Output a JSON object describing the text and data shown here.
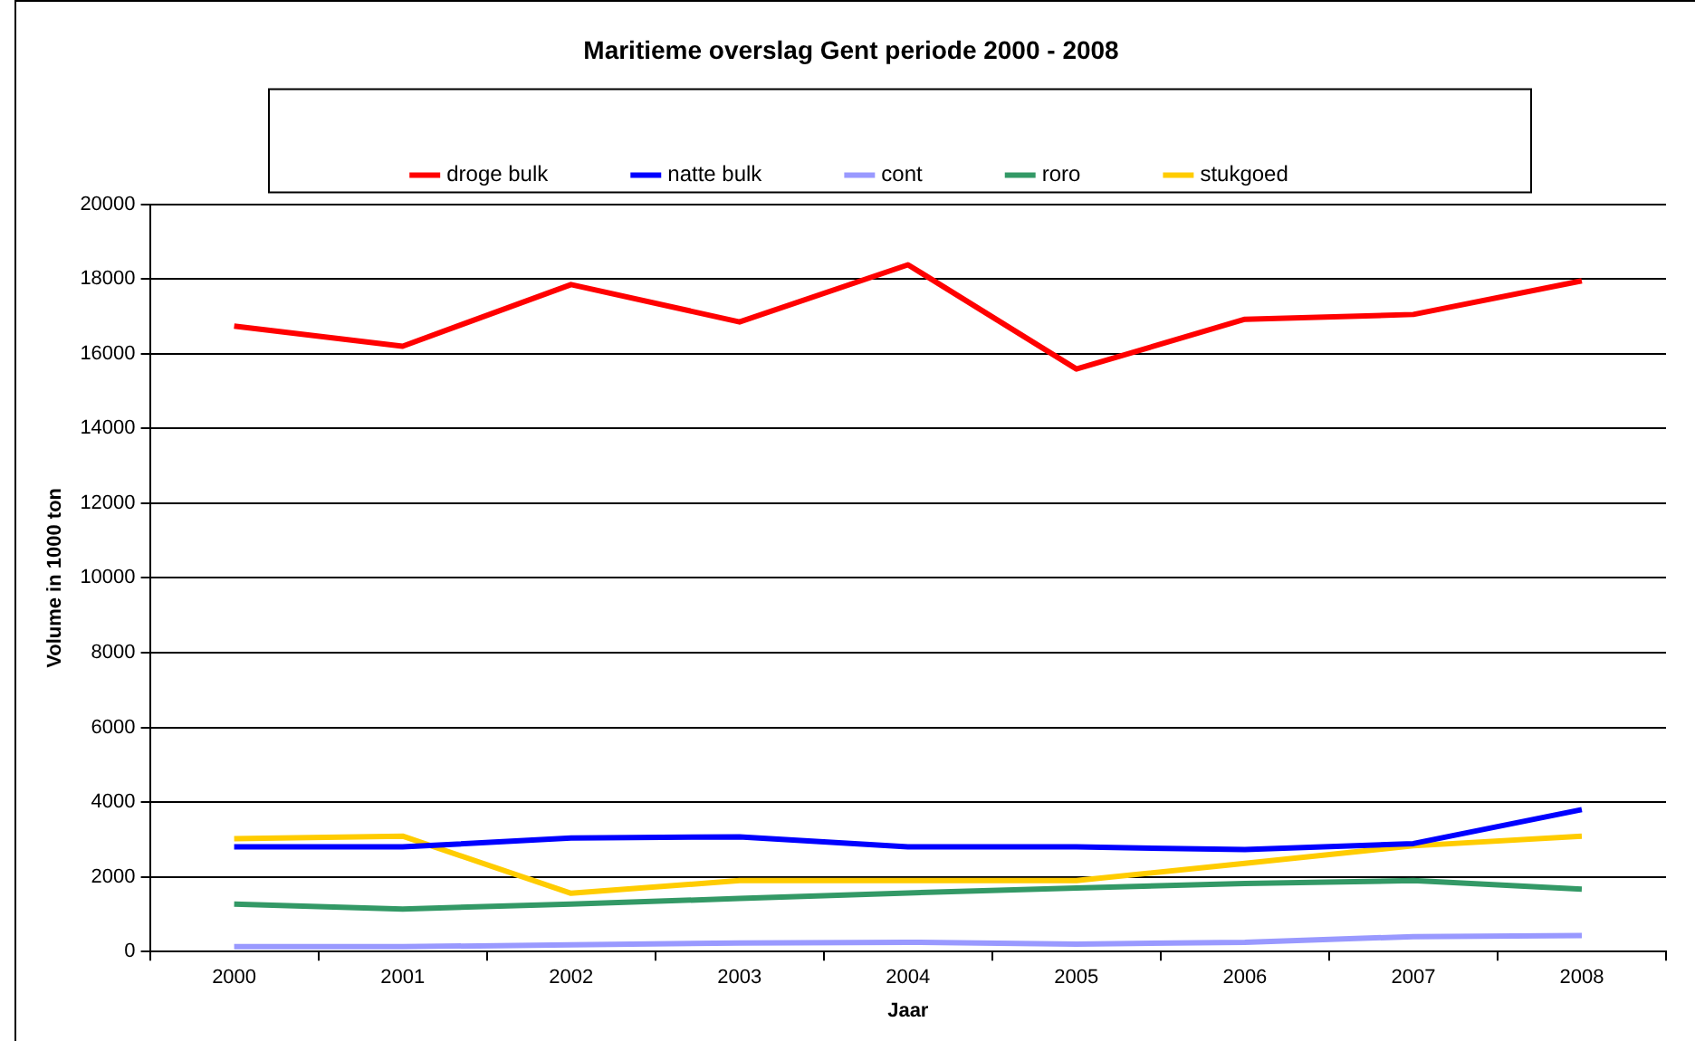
{
  "chart_data": {
    "type": "line",
    "title": "Maritieme overslag Gent periode 2000 - 2008",
    "xlabel": "Jaar",
    "ylabel": "Volume in 1000 ton",
    "categories": [
      "2000",
      "2001",
      "2002",
      "2003",
      "2004",
      "2005",
      "2006",
      "2007",
      "2008"
    ],
    "series": [
      {
        "name": "droge bulk",
        "color": "#ff0000",
        "values": [
          16740,
          16200,
          17850,
          16850,
          18380,
          15590,
          16920,
          17050,
          17950
        ]
      },
      {
        "name": "natte bulk",
        "color": "#0000ff",
        "values": [
          2800,
          2800,
          3040,
          3070,
          2800,
          2800,
          2730,
          2890,
          3800
        ]
      },
      {
        "name": "cont",
        "color": "#9999ff",
        "values": [
          130,
          130,
          180,
          230,
          250,
          200,
          250,
          400,
          430
        ]
      },
      {
        "name": "roro",
        "color": "#339966",
        "values": [
          1270,
          1140,
          1270,
          1420,
          1570,
          1700,
          1820,
          1900,
          1670
        ]
      },
      {
        "name": "stukgoed",
        "color": "#ffcc00",
        "values": [
          3020,
          3090,
          1560,
          1900,
          1900,
          1900,
          2360,
          2830,
          3090
        ]
      }
    ],
    "ylim": [
      0,
      20000
    ],
    "yticks": [
      0,
      2000,
      4000,
      6000,
      8000,
      10000,
      12000,
      14000,
      16000,
      18000,
      20000
    ],
    "grid": "y",
    "legend": "top",
    "marker": "none",
    "line_style": "solid"
  }
}
